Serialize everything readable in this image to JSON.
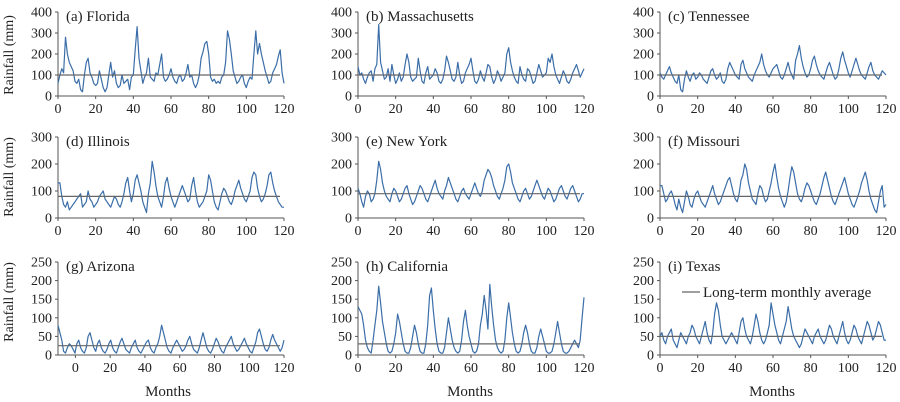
{
  "colors": {
    "series": "#3b6ea8",
    "average": "#666666",
    "axis": "#555555"
  },
  "ylabel_text": "Rainfall (mm)",
  "xlabel_text": "Months",
  "legend_label": "Long-term monthly average",
  "chart_data": [
    {
      "type": "line",
      "title": "(a) Florida",
      "xlim": [
        0,
        120
      ],
      "ylim": [
        0,
        400
      ],
      "xticks": [
        0,
        20,
        40,
        60,
        80,
        100,
        120
      ],
      "yticks": [
        0,
        100,
        200,
        300,
        400
      ],
      "average": 100,
      "values": [
        60,
        100,
        130,
        110,
        280,
        200,
        160,
        140,
        120,
        70,
        60,
        80,
        30,
        20,
        100,
        160,
        180,
        110,
        90,
        60,
        50,
        60,
        120,
        80,
        40,
        20,
        40,
        100,
        160,
        90,
        120,
        60,
        40,
        50,
        100,
        60,
        70,
        80,
        30,
        90,
        100,
        220,
        330,
        180,
        120,
        60,
        90,
        110,
        180,
        90,
        80,
        70,
        110,
        100,
        150,
        200,
        90,
        70,
        80,
        100,
        130,
        90,
        70,
        60,
        90,
        100,
        70,
        80,
        110,
        150,
        90,
        100,
        60,
        40,
        60,
        100,
        180,
        210,
        250,
        260,
        200,
        90,
        70,
        80,
        60,
        70,
        60,
        90,
        100,
        160,
        310,
        270,
        200,
        120,
        90,
        60,
        70,
        90,
        100,
        60,
        40,
        70,
        90,
        80,
        200,
        310,
        200,
        250,
        200,
        160,
        120,
        90,
        60,
        70,
        110,
        130,
        150,
        190,
        220,
        110,
        60
      ]
    },
    {
      "type": "line",
      "title": "(b) Massachusetts",
      "xlim": [
        0,
        120
      ],
      "ylim": [
        0,
        400
      ],
      "xticks": [
        0,
        20,
        40,
        60,
        80,
        100,
        120
      ],
      "yticks": [
        0,
        100,
        200,
        300,
        400
      ],
      "average": 100,
      "values": [
        140,
        100,
        110,
        80,
        60,
        90,
        110,
        120,
        70,
        130,
        150,
        340,
        160,
        120,
        80,
        90,
        130,
        70,
        150,
        100,
        60,
        80,
        110,
        70,
        90,
        150,
        200,
        160,
        90,
        70,
        80,
        90,
        180,
        120,
        70,
        60,
        110,
        140,
        80,
        90,
        100,
        130,
        110,
        70,
        60,
        80,
        120,
        190,
        160,
        120,
        80,
        70,
        90,
        160,
        100,
        60,
        70,
        110,
        130,
        150,
        180,
        120,
        70,
        60,
        80,
        120,
        90,
        70,
        110,
        150,
        140,
        90,
        60,
        80,
        120,
        100,
        70,
        90,
        110,
        200,
        230,
        160,
        120,
        90,
        70,
        60,
        140,
        100,
        80,
        70,
        130,
        120,
        90,
        60,
        70,
        110,
        150,
        120,
        90,
        100,
        110,
        180,
        160,
        200,
        140,
        100,
        80,
        60,
        90,
        120,
        100,
        70,
        60,
        80,
        110,
        130,
        150,
        120,
        90,
        110,
        130
      ]
    },
    {
      "type": "line",
      "title": "(c) Tennessee",
      "xlim": [
        0,
        120
      ],
      "ylim": [
        0,
        400
      ],
      "xticks": [
        0,
        20,
        40,
        60,
        80,
        100,
        120
      ],
      "yticks": [
        0,
        100,
        200,
        300,
        400
      ],
      "average": 100,
      "values": [
        110,
        90,
        80,
        100,
        120,
        140,
        110,
        90,
        70,
        60,
        100,
        30,
        20,
        80,
        120,
        90,
        70,
        100,
        110,
        80,
        90,
        110,
        100,
        80,
        70,
        60,
        90,
        120,
        130,
        100,
        80,
        90,
        110,
        70,
        60,
        80,
        130,
        160,
        140,
        120,
        100,
        90,
        80,
        150,
        170,
        130,
        110,
        90,
        80,
        70,
        100,
        120,
        140,
        160,
        200,
        150,
        120,
        100,
        90,
        110,
        130,
        140,
        150,
        120,
        90,
        80,
        100,
        130,
        160,
        120,
        100,
        80,
        170,
        200,
        240,
        180,
        140,
        110,
        90,
        100,
        130,
        170,
        190,
        150,
        120,
        100,
        90,
        80,
        110,
        140,
        160,
        130,
        100,
        80,
        90,
        130,
        180,
        210,
        170,
        140,
        110,
        90,
        120,
        150,
        180,
        150,
        120,
        100,
        90,
        80,
        110,
        140,
        160,
        120,
        100,
        90,
        80,
        100,
        120,
        110,
        100
      ]
    },
    {
      "type": "line",
      "title": "(d) Illinois",
      "xlim": [
        0,
        120
      ],
      "ylim": [
        0,
        300
      ],
      "xticks": [
        0,
        20,
        40,
        60,
        80,
        100,
        120
      ],
      "yticks": [
        0,
        100,
        200,
        300
      ],
      "average": 80,
      "values": [
        130,
        130,
        80,
        50,
        40,
        60,
        30,
        40,
        50,
        60,
        70,
        80,
        90,
        40,
        50,
        60,
        100,
        70,
        60,
        40,
        50,
        60,
        80,
        90,
        100,
        70,
        60,
        50,
        40,
        60,
        80,
        70,
        50,
        40,
        60,
        90,
        130,
        150,
        100,
        60,
        90,
        140,
        160,
        130,
        100,
        60,
        40,
        20,
        90,
        130,
        210,
        170,
        120,
        80,
        60,
        40,
        80,
        130,
        150,
        110,
        80,
        60,
        40,
        60,
        80,
        100,
        120,
        100,
        80,
        60,
        70,
        120,
        150,
        100,
        60,
        40,
        50,
        60,
        80,
        100,
        160,
        140,
        100,
        60,
        40,
        30,
        60,
        90,
        110,
        100,
        80,
        60,
        50,
        70,
        100,
        120,
        140,
        110,
        90,
        70,
        60,
        80,
        100,
        150,
        170,
        160,
        110,
        80,
        60,
        70,
        90,
        120,
        160,
        170,
        130,
        100,
        80,
        60,
        50,
        40,
        40
      ]
    },
    {
      "type": "line",
      "title": "(e) New York",
      "xlim": [
        0,
        120
      ],
      "ylim": [
        0,
        300
      ],
      "xticks": [
        0,
        20,
        40,
        60,
        80,
        100,
        120
      ],
      "yticks": [
        0,
        100,
        200,
        300
      ],
      "average": 90,
      "values": [
        110,
        90,
        60,
        40,
        80,
        100,
        90,
        60,
        70,
        90,
        140,
        210,
        180,
        130,
        100,
        80,
        70,
        60,
        90,
        110,
        100,
        80,
        60,
        70,
        90,
        110,
        120,
        90,
        70,
        50,
        60,
        80,
        100,
        120,
        110,
        90,
        70,
        60,
        80,
        100,
        120,
        140,
        110,
        90,
        80,
        70,
        100,
        120,
        150,
        130,
        110,
        90,
        70,
        60,
        80,
        100,
        110,
        90,
        80,
        70,
        90,
        110,
        130,
        110,
        90,
        80,
        100,
        140,
        160,
        180,
        170,
        150,
        120,
        100,
        80,
        70,
        90,
        110,
        140,
        190,
        200,
        170,
        130,
        110,
        90,
        70,
        60,
        80,
        100,
        110,
        90,
        70,
        80,
        100,
        120,
        140,
        120,
        100,
        80,
        70,
        90,
        110,
        100,
        80,
        60,
        70,
        90,
        110,
        120,
        100,
        80,
        70,
        90,
        110,
        120,
        100,
        80,
        60,
        70,
        90,
        90
      ]
    },
    {
      "type": "line",
      "title": "(f) Missouri",
      "xlim": [
        0,
        120
      ],
      "ylim": [
        0,
        300
      ],
      "xticks": [
        0,
        20,
        40,
        60,
        80,
        100,
        120
      ],
      "yticks": [
        0,
        100,
        200,
        300
      ],
      "average": 80,
      "values": [
        120,
        120,
        90,
        60,
        70,
        90,
        100,
        80,
        50,
        30,
        70,
        40,
        20,
        60,
        100,
        80,
        50,
        40,
        70,
        90,
        100,
        80,
        60,
        50,
        40,
        60,
        80,
        100,
        120,
        90,
        70,
        50,
        60,
        80,
        100,
        120,
        140,
        150,
        120,
        90,
        70,
        60,
        90,
        140,
        160,
        200,
        180,
        130,
        100,
        70,
        60,
        50,
        90,
        120,
        110,
        80,
        60,
        70,
        100,
        130,
        170,
        200,
        150,
        110,
        80,
        60,
        40,
        60,
        100,
        150,
        190,
        170,
        130,
        90,
        70,
        60,
        80,
        110,
        130,
        120,
        100,
        80,
        60,
        50,
        70,
        90,
        120,
        150,
        170,
        140,
        110,
        80,
        60,
        50,
        70,
        90,
        110,
        130,
        150,
        120,
        90,
        70,
        50,
        40,
        60,
        80,
        100,
        130,
        150,
        170,
        140,
        100,
        70,
        50,
        30,
        20,
        60,
        100,
        120,
        40,
        50
      ]
    },
    {
      "type": "line",
      "title": "(g) Arizona",
      "xlim": [
        -10,
        120
      ],
      "ylim": [
        0,
        250
      ],
      "xticks": [
        0,
        20,
        40,
        60,
        80,
        100,
        120
      ],
      "yticks": [
        0,
        50,
        100,
        150,
        200,
        250
      ],
      "average": 25,
      "values": [
        80,
        60,
        40,
        10,
        5,
        20,
        30,
        25,
        15,
        5,
        30,
        40,
        20,
        10,
        5,
        20,
        50,
        60,
        40,
        20,
        10,
        30,
        40,
        20,
        10,
        5,
        15,
        30,
        40,
        20,
        10,
        5,
        20,
        35,
        45,
        30,
        15,
        10,
        5,
        20,
        30,
        40,
        20,
        10,
        5,
        15,
        25,
        35,
        40,
        20,
        10,
        5,
        20,
        30,
        50,
        80,
        60,
        40,
        20,
        10,
        5,
        20,
        30,
        40,
        30,
        20,
        10,
        15,
        25,
        40,
        50,
        30,
        15,
        10,
        5,
        20,
        40,
        60,
        40,
        20,
        10,
        5,
        15,
        30,
        45,
        35,
        20,
        10,
        5,
        20,
        30,
        40,
        50,
        30,
        20,
        10,
        15,
        25,
        35,
        45,
        30,
        20,
        10,
        5,
        20,
        35,
        60,
        70,
        50,
        30,
        15,
        10,
        20,
        40,
        55,
        40,
        30,
        20,
        10,
        20,
        40
      ]
    },
    {
      "type": "line",
      "title": "(h) California",
      "xlim": [
        0,
        120
      ],
      "ylim": [
        0,
        250
      ],
      "xticks": [
        0,
        20,
        40,
        60,
        80,
        100,
        120
      ],
      "yticks": [
        0,
        50,
        100,
        150,
        200,
        250
      ],
      "average": 30,
      "values": [
        130,
        120,
        110,
        80,
        40,
        20,
        10,
        5,
        40,
        80,
        120,
        185,
        140,
        90,
        60,
        30,
        10,
        5,
        10,
        30,
        60,
        110,
        90,
        60,
        30,
        10,
        5,
        5,
        20,
        50,
        80,
        60,
        30,
        10,
        5,
        5,
        30,
        80,
        160,
        180,
        120,
        70,
        30,
        10,
        5,
        5,
        20,
        60,
        100,
        70,
        40,
        20,
        10,
        5,
        10,
        40,
        90,
        120,
        80,
        50,
        30,
        10,
        5,
        10,
        30,
        80,
        110,
        160,
        120,
        70,
        190,
        130,
        80,
        40,
        20,
        10,
        5,
        10,
        40,
        100,
        140,
        100,
        60,
        30,
        10,
        5,
        10,
        30,
        60,
        80,
        60,
        30,
        10,
        5,
        5,
        20,
        50,
        70,
        50,
        30,
        10,
        5,
        5,
        10,
        30,
        60,
        90,
        60,
        30,
        10,
        5,
        5,
        10,
        20,
        30,
        40,
        30,
        20,
        40,
        100,
        155
      ]
    },
    {
      "type": "line",
      "title": "(i) Texas",
      "xlim": [
        0,
        120
      ],
      "ylim": [
        0,
        250
      ],
      "xticks": [
        0,
        20,
        40,
        60,
        80,
        100,
        120
      ],
      "yticks": [
        0,
        50,
        100,
        150,
        200,
        250
      ],
      "average": 50,
      "values": [
        50,
        60,
        40,
        30,
        50,
        60,
        70,
        40,
        30,
        20,
        40,
        60,
        50,
        40,
        30,
        50,
        60,
        80,
        70,
        50,
        40,
        30,
        50,
        70,
        90,
        60,
        40,
        30,
        60,
        110,
        140,
        120,
        80,
        50,
        40,
        30,
        40,
        50,
        60,
        50,
        40,
        30,
        60,
        90,
        100,
        70,
        50,
        40,
        30,
        50,
        80,
        110,
        90,
        60,
        40,
        30,
        40,
        60,
        80,
        140,
        110,
        80,
        60,
        40,
        30,
        50,
        70,
        90,
        130,
        100,
        70,
        50,
        40,
        30,
        20,
        30,
        50,
        70,
        60,
        50,
        40,
        30,
        50,
        60,
        70,
        50,
        40,
        30,
        40,
        60,
        80,
        70,
        50,
        40,
        30,
        50,
        70,
        90,
        60,
        40,
        30,
        40,
        60,
        80,
        70,
        50,
        40,
        30,
        50,
        70,
        90,
        80,
        60,
        40,
        50,
        70,
        90,
        80,
        60,
        40,
        40
      ]
    }
  ]
}
